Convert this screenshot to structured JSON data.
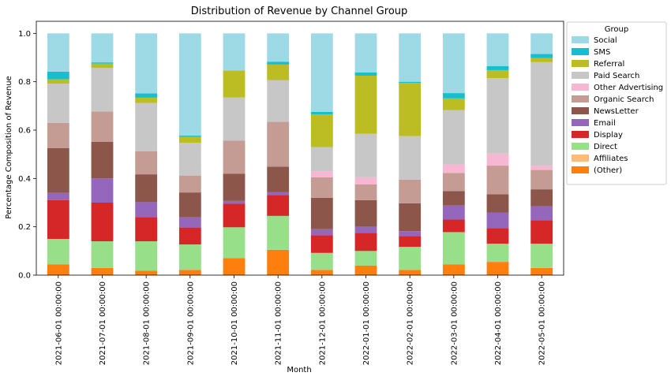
{
  "chart_data": {
    "type": "bar",
    "stacked": true,
    "title": "Distribution of Revenue by Channel Group",
    "xlabel": "Month",
    "ylabel": "Percentage Composition of Revenue",
    "ylim": [
      0,
      1.05
    ],
    "yticks": [
      "0.0",
      "0.2",
      "0.4",
      "0.6",
      "0.8",
      "1.0"
    ],
    "legend_title": "Group",
    "legend_position": "outside-right",
    "categories": [
      "2021-06-01 00:00:00",
      "2021-07-01 00:00:00",
      "2021-08-01 00:00:00",
      "2021-09-01 00:00:00",
      "2021-10-01 00:00:00",
      "2021-11-01 00:00:00",
      "2021-12-01 00:00:00",
      "2022-01-01 00:00:00",
      "2022-02-01 00:00:00",
      "2022-03-01 00:00:00",
      "2022-04-01 00:00:00",
      "2022-05-01 00:00:00"
    ],
    "series": [
      {
        "name": "(Other)",
        "color": "#ff7f0e",
        "values": [
          0.045,
          0.03,
          0.018,
          0.022,
          0.07,
          0.105,
          0.022,
          0.04,
          0.022,
          0.045,
          0.055,
          0.03
        ]
      },
      {
        "name": "Affiliates",
        "color": "#ffbb78",
        "values": [
          0,
          0,
          0,
          0,
          0,
          0,
          0,
          0,
          0,
          0,
          0,
          0
        ]
      },
      {
        "name": "Direct",
        "color": "#98df8a",
        "values": [
          0.105,
          0.11,
          0.122,
          0.105,
          0.128,
          0.14,
          0.07,
          0.06,
          0.095,
          0.133,
          0.075,
          0.1
        ]
      },
      {
        "name": "Display",
        "color": "#d62728",
        "values": [
          0.16,
          0.16,
          0.1,
          0.07,
          0.097,
          0.087,
          0.073,
          0.075,
          0.045,
          0.052,
          0.065,
          0.097
        ]
      },
      {
        "name": "Email",
        "color": "#9467bd",
        "values": [
          0.03,
          0.1,
          0.062,
          0.042,
          0.012,
          0.012,
          0.025,
          0.025,
          0.02,
          0.058,
          0.063,
          0.058
        ]
      },
      {
        "name": "NewsLetter",
        "color": "#8c564b",
        "values": [
          0.185,
          0.152,
          0.115,
          0.103,
          0.112,
          0.105,
          0.13,
          0.11,
          0.115,
          0.06,
          0.077,
          0.07
        ]
      },
      {
        "name": "Organic Search",
        "color": "#c49c94",
        "values": [
          0.105,
          0.125,
          0.095,
          0.07,
          0.138,
          0.185,
          0.085,
          0.065,
          0.098,
          0.075,
          0.118,
          0.08
        ]
      },
      {
        "name": "Other Advertising",
        "color": "#f7b6d2",
        "values": [
          0,
          0,
          0,
          0,
          0,
          0,
          0.025,
          0.03,
          0,
          0.035,
          0.05,
          0.018
        ]
      },
      {
        "name": "Paid Search",
        "color": "#c7c7c7",
        "values": [
          0.162,
          0.18,
          0.2,
          0.135,
          0.178,
          0.172,
          0.1,
          0.18,
          0.18,
          0.225,
          0.312,
          0.428
        ]
      },
      {
        "name": "Referral",
        "color": "#bcbd22",
        "values": [
          0.018,
          0.018,
          0.022,
          0.025,
          0.112,
          0.065,
          0.135,
          0.24,
          0.22,
          0.048,
          0.033,
          0.017
        ]
      },
      {
        "name": "SMS",
        "color": "#17becf",
        "values": [
          0.032,
          0.005,
          0.018,
          0.005,
          0.0,
          0.012,
          0.01,
          0.013,
          0.005,
          0.022,
          0.017,
          0.017
        ]
      },
      {
        "name": "Social",
        "color": "#9edae5",
        "values": [
          0.158,
          0.12,
          0.248,
          0.423,
          0.153,
          0.117,
          0.325,
          0.162,
          0.2,
          0.247,
          0.135,
          0.085
        ]
      }
    ]
  }
}
